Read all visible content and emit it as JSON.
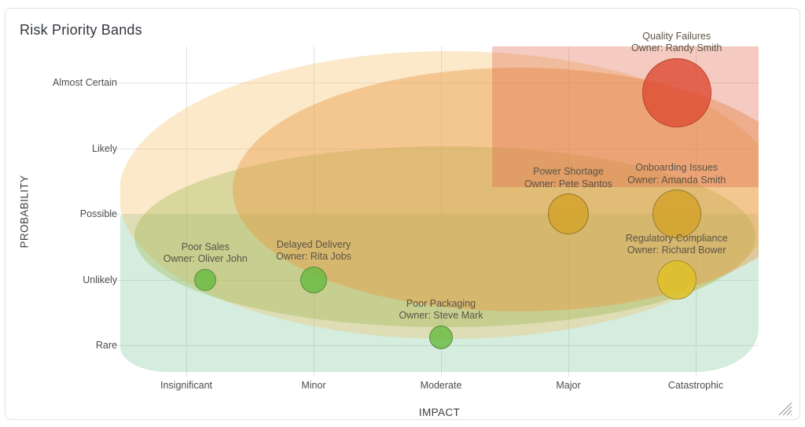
{
  "chart_data": {
    "type": "scatter",
    "subtype": "bubble-risk-matrix",
    "title": "Risk Priority Bands",
    "xlabel": "IMPACT",
    "ylabel": "PROBABILITY",
    "x_categories": [
      "Insignificant",
      "Minor",
      "Moderate",
      "Major",
      "Catastrophic"
    ],
    "y_categories": [
      "Rare",
      "Unlikely",
      "Possible",
      "Likely",
      "Almost Certain"
    ],
    "grid": true,
    "legend": "none",
    "points": [
      {
        "name": "Quality Failures",
        "owner": "Owner: Randy Smith",
        "impact": 4.85,
        "probability": 4.85,
        "radius": 44,
        "fill": "rgba(222,77,53,0.82)",
        "stroke": "rgba(178,62,42,0.85)"
      },
      {
        "name": "Onboarding Issues",
        "owner": "Owner: Amanda Smith",
        "impact": 4.85,
        "probability": 3.0,
        "radius": 31,
        "fill": "rgba(212,163,44,0.85)",
        "stroke": "rgba(130,110,40,0.8)"
      },
      {
        "name": "Power Shortage",
        "owner": "Owner: Pete Santos",
        "impact": 4.0,
        "probability": 3.0,
        "radius": 26,
        "fill": "rgba(212,163,44,0.85)",
        "stroke": "rgba(130,110,40,0.8)"
      },
      {
        "name": "Regulatory Compliance",
        "owner": "Owner: Richard Bower",
        "impact": 4.85,
        "probability": 2.0,
        "radius": 25,
        "fill": "rgba(224,193,40,0.85)",
        "stroke": "rgba(150,130,40,0.8)"
      },
      {
        "name": "Delayed Delivery",
        "owner": "Owner: Rita Jobs",
        "impact": 2.0,
        "probability": 2.0,
        "radius": 17,
        "fill": "rgba(104,187,66,0.82)",
        "stroke": "rgba(86,122,58,0.8)"
      },
      {
        "name": "Poor Sales",
        "owner": "Owner: Oliver John",
        "impact": 1.15,
        "probability": 2.0,
        "radius": 14,
        "fill": "rgba(104,187,66,0.82)",
        "stroke": "rgba(86,122,58,0.8)"
      },
      {
        "name": "Poor Packaging",
        "owner": "Owner: Steve Mark",
        "impact": 3.0,
        "probability": 1.12,
        "radius": 15,
        "fill": "rgba(104,187,66,0.82)",
        "stroke": "rgba(86,122,58,0.8)"
      }
    ],
    "bands": [
      {
        "name": "low",
        "color": "rgba(121,199,157,0.32)"
      },
      {
        "name": "medium",
        "color": "rgba(243,190,99,0.34)"
      },
      {
        "name": "moderate",
        "color": "rgba(150,178,64,0.32)"
      },
      {
        "name": "high",
        "color": "rgba(234,148,60,0.40)"
      },
      {
        "name": "extreme",
        "color": "rgba(223,94,66,0.33)"
      }
    ]
  }
}
